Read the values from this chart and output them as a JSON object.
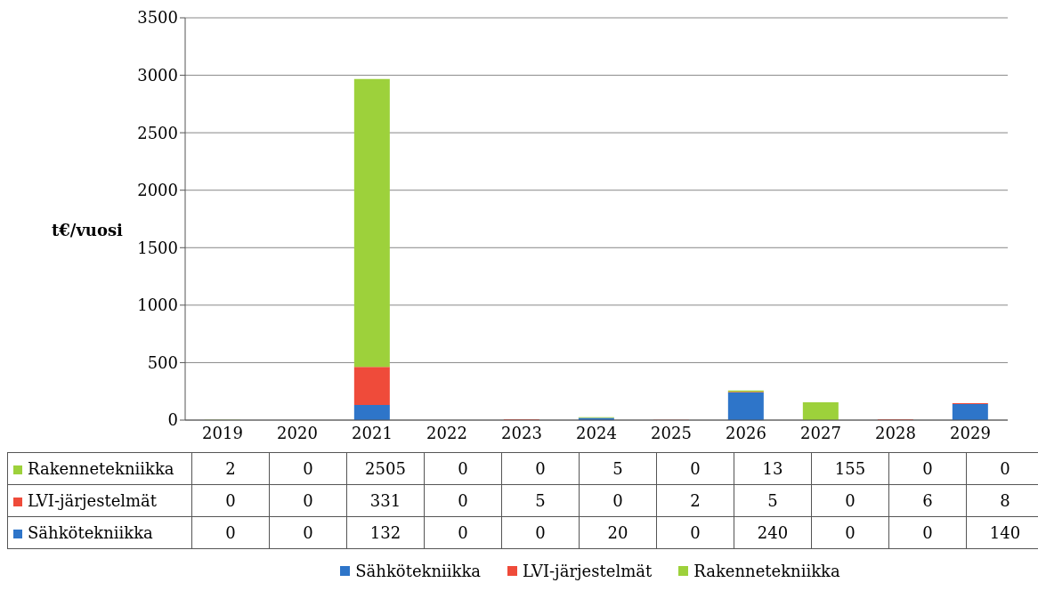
{
  "chart_data": {
    "type": "bar",
    "stacked": true,
    "ylabel": "t€/vuosi",
    "categories": [
      "2019",
      "2020",
      "2021",
      "2022",
      "2023",
      "2024",
      "2025",
      "2026",
      "2027",
      "2028",
      "2029"
    ],
    "series": [
      {
        "name": "Sähkötekniikka",
        "color": "#2e75c9",
        "values": [
          0,
          0,
          132,
          0,
          0,
          20,
          0,
          240,
          0,
          0,
          140
        ]
      },
      {
        "name": "LVI-järjestelmät",
        "color": "#ef4b3a",
        "values": [
          0,
          0,
          331,
          0,
          5,
          0,
          2,
          5,
          0,
          6,
          8
        ]
      },
      {
        "name": "Rakennetekniikka",
        "color": "#9dd13b",
        "values": [
          2,
          0,
          2505,
          0,
          0,
          5,
          0,
          13,
          155,
          0,
          0
        ]
      }
    ],
    "ylim": [
      0,
      3500
    ],
    "yticks": [
      0,
      500,
      1000,
      1500,
      2000,
      2500,
      3000,
      3500
    ],
    "grid": "y",
    "legend": "bottom",
    "data_labels": true
  }
}
